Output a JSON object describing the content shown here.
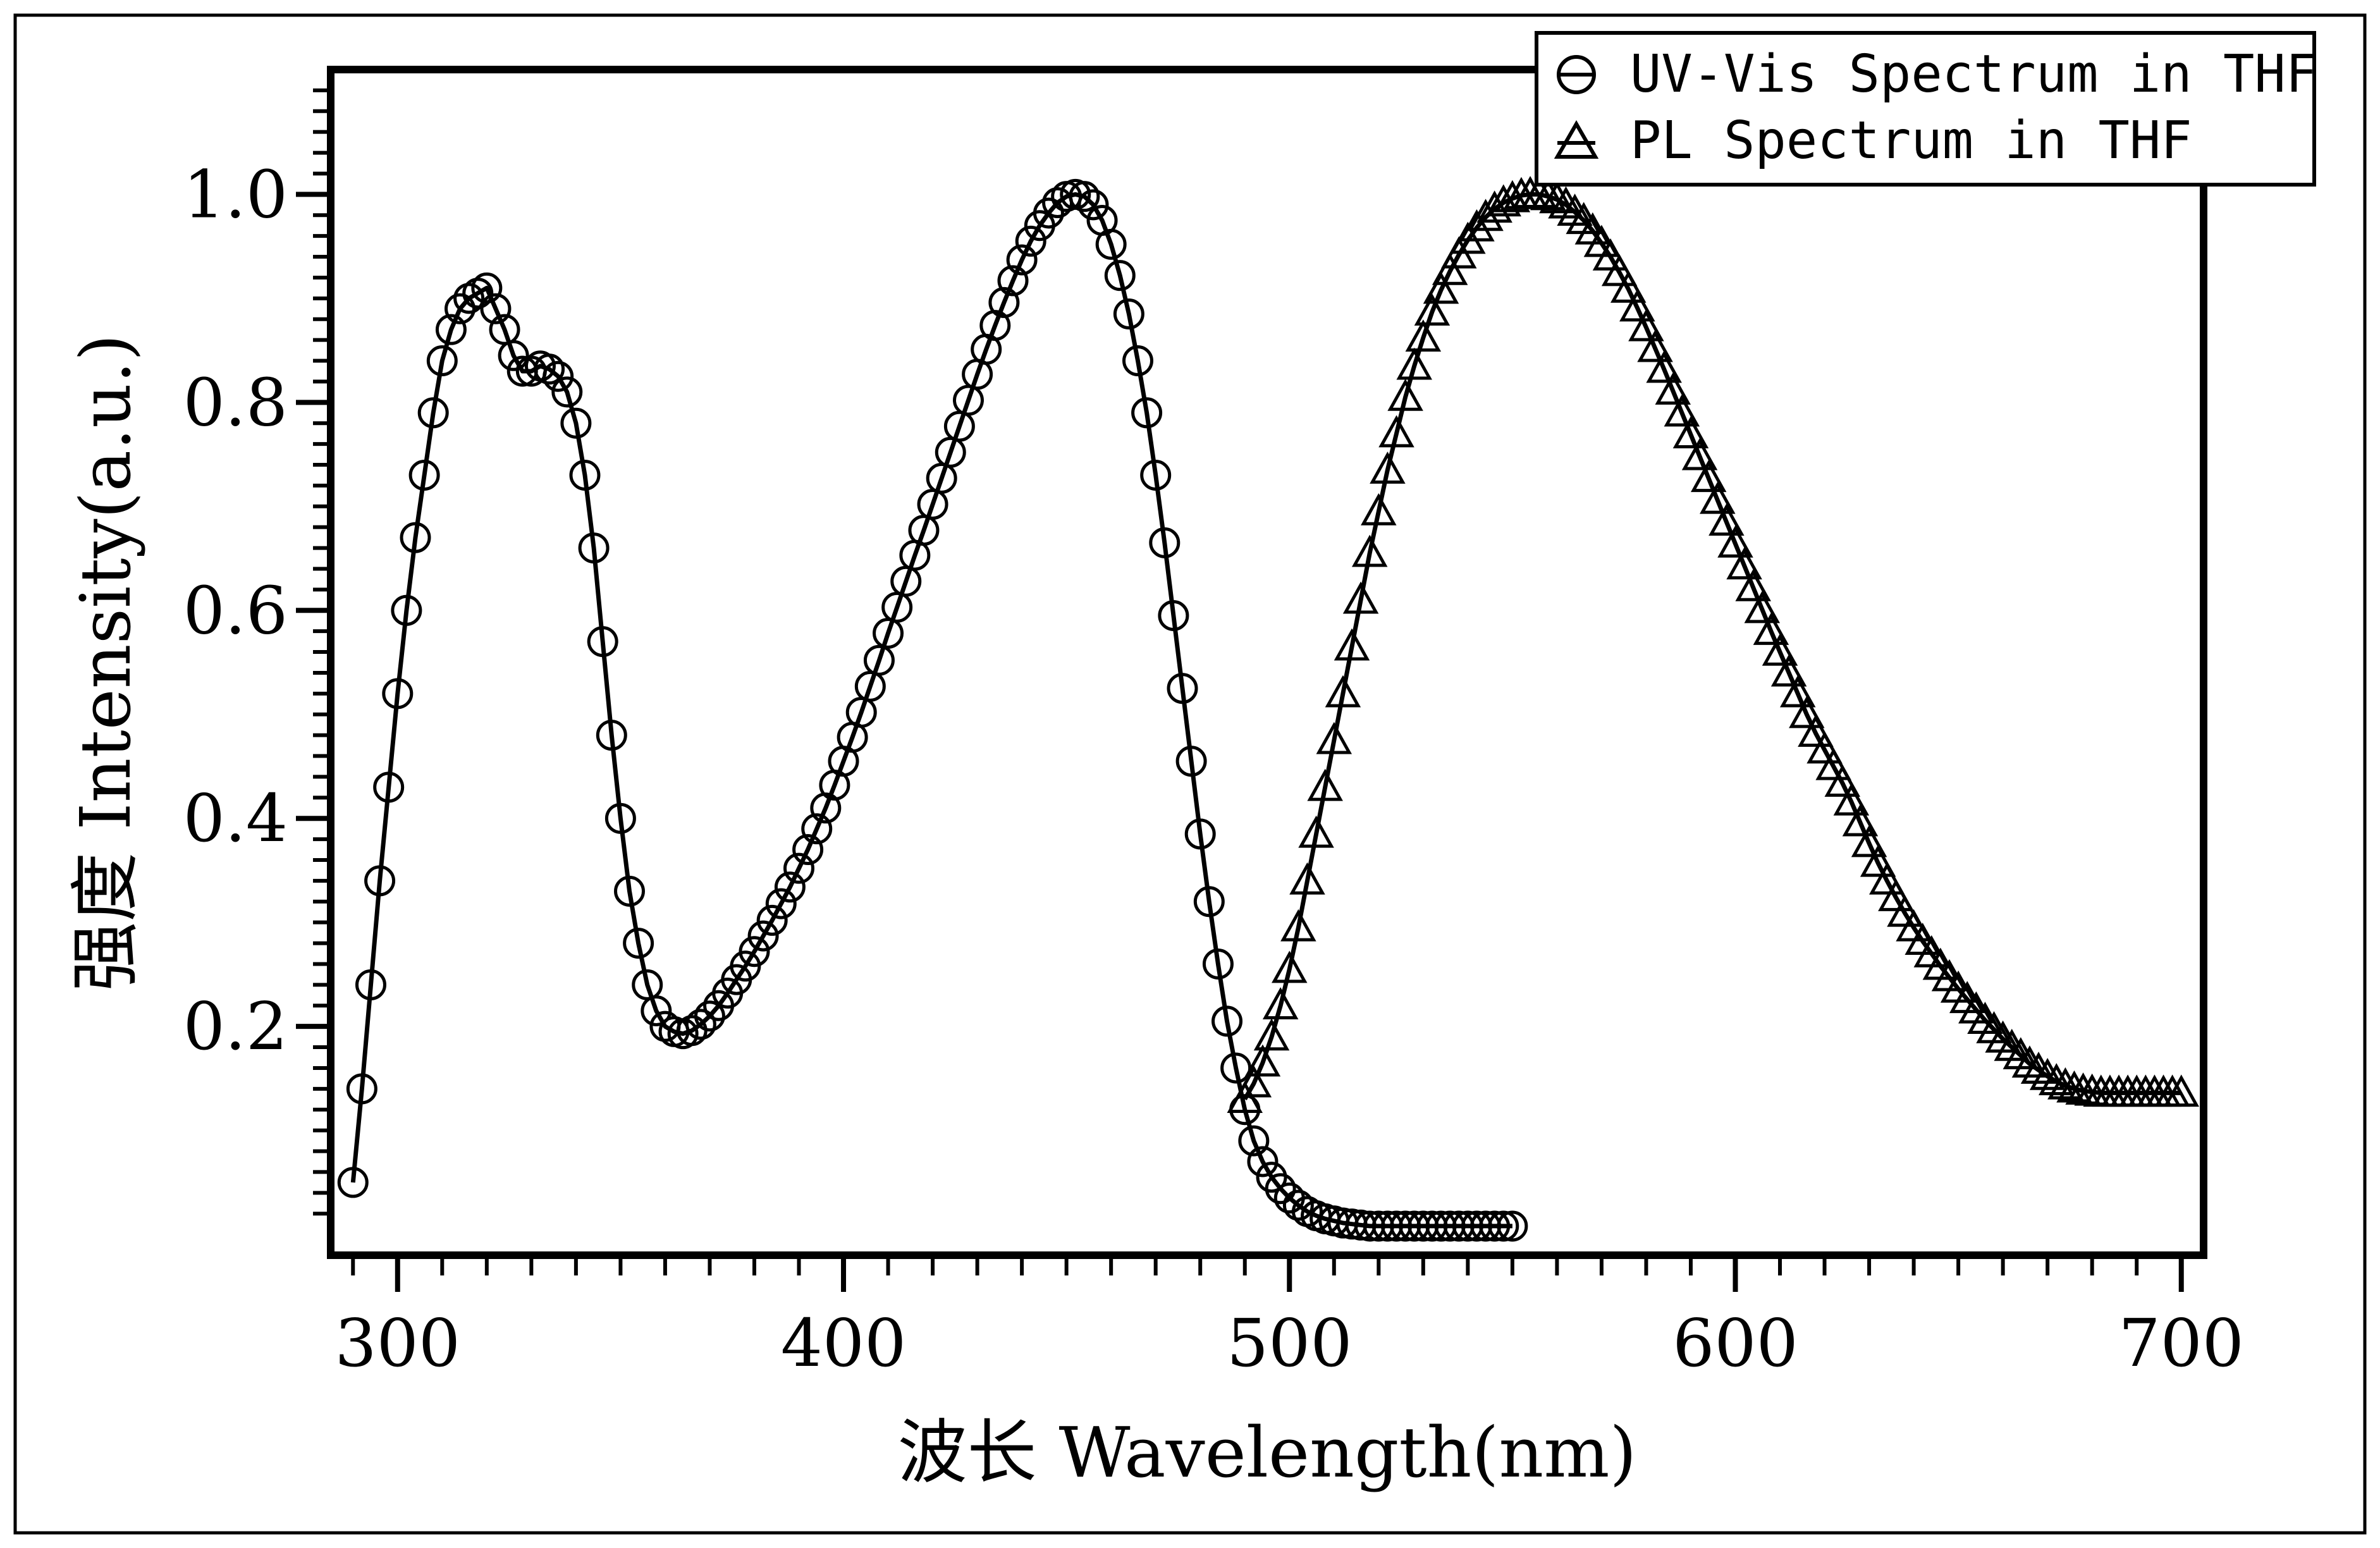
{
  "chart_data": {
    "type": "line",
    "xlabel": "波长 Wavelength(nm)",
    "ylabel": "强度 Intensity(a.u.)",
    "xlim": [
      285,
      705
    ],
    "ylim": [
      -0.02,
      1.12
    ],
    "xticks": [
      300,
      400,
      500,
      600,
      700
    ],
    "xtick_labels": [
      "300",
      "400",
      "500",
      "600",
      "700"
    ],
    "yticks": [
      0.2,
      0.4,
      0.6,
      0.8,
      1.0
    ],
    "ytick_labels": [
      "0.2",
      "0.4",
      "0.6",
      "0.8",
      "1.0"
    ],
    "grid": false,
    "legend": "top-right",
    "series": [
      {
        "name": "UV-Vis Spectrum in THF",
        "marker": "circle",
        "color": "#000000",
        "x": [
          290,
          292,
          294,
          296,
          298,
          300,
          302,
          304,
          306,
          308,
          310,
          312,
          314,
          316,
          318,
          320,
          322,
          324,
          326,
          328,
          330,
          332,
          334,
          336,
          338,
          340,
          342,
          344,
          346,
          348,
          350,
          352,
          354,
          356,
          358,
          360,
          362,
          364,
          366,
          368,
          370,
          372,
          374,
          376,
          378,
          380,
          382,
          384,
          386,
          388,
          390,
          392,
          394,
          396,
          398,
          400,
          402,
          404,
          406,
          408,
          410,
          412,
          414,
          416,
          418,
          420,
          422,
          424,
          426,
          428,
          430,
          432,
          434,
          436,
          438,
          440,
          442,
          444,
          446,
          448,
          450,
          452,
          454,
          456,
          458,
          460,
          462,
          464,
          466,
          468,
          470,
          472,
          474,
          476,
          478,
          480,
          482,
          484,
          486,
          488,
          490,
          492,
          494,
          496,
          498,
          500,
          502,
          504,
          506,
          508,
          510,
          512,
          514,
          516,
          518,
          520,
          522,
          524,
          526,
          528,
          530,
          532,
          534,
          536,
          538,
          540,
          542,
          544,
          546,
          548,
          550
        ],
        "y": [
          0.05,
          0.14,
          0.24,
          0.34,
          0.43,
          0.52,
          0.6,
          0.67,
          0.73,
          0.79,
          0.84,
          0.87,
          0.89,
          0.9,
          0.905,
          0.91,
          0.89,
          0.87,
          0.845,
          0.83,
          0.83,
          0.835,
          0.832,
          0.825,
          0.81,
          0.78,
          0.73,
          0.66,
          0.57,
          0.48,
          0.4,
          0.33,
          0.28,
          0.24,
          0.215,
          0.2,
          0.195,
          0.193,
          0.196,
          0.202,
          0.21,
          0.22,
          0.232,
          0.245,
          0.258,
          0.272,
          0.287,
          0.302,
          0.318,
          0.334,
          0.352,
          0.37,
          0.39,
          0.41,
          0.432,
          0.455,
          0.478,
          0.502,
          0.527,
          0.552,
          0.578,
          0.603,
          0.628,
          0.653,
          0.677,
          0.702,
          0.727,
          0.752,
          0.777,
          0.802,
          0.827,
          0.851,
          0.874,
          0.896,
          0.917,
          0.937,
          0.955,
          0.97,
          0.982,
          0.992,
          0.998,
          1.0,
          0.998,
          0.99,
          0.975,
          0.952,
          0.922,
          0.885,
          0.84,
          0.79,
          0.73,
          0.665,
          0.595,
          0.525,
          0.455,
          0.385,
          0.32,
          0.26,
          0.205,
          0.16,
          0.12,
          0.09,
          0.07,
          0.055,
          0.044,
          0.035,
          0.028,
          0.022,
          0.018,
          0.015,
          0.013,
          0.011,
          0.01,
          0.009,
          0.008,
          0.008,
          0.008,
          0.008,
          0.008,
          0.008,
          0.008,
          0.008,
          0.008,
          0.008,
          0.008,
          0.008,
          0.008,
          0.008,
          0.008,
          0.008,
          0.008
        ]
      },
      {
        "name": "PL Spectrum in THF",
        "marker": "triangle",
        "color": "#000000",
        "x": [
          490,
          492,
          494,
          496,
          498,
          500,
          502,
          504,
          506,
          508,
          510,
          512,
          514,
          516,
          518,
          520,
          522,
          524,
          526,
          528,
          530,
          532,
          534,
          536,
          538,
          540,
          542,
          544,
          546,
          548,
          550,
          552,
          554,
          556,
          558,
          560,
          562,
          564,
          566,
          568,
          570,
          572,
          574,
          576,
          578,
          580,
          582,
          584,
          586,
          588,
          590,
          592,
          594,
          596,
          598,
          600,
          602,
          604,
          606,
          608,
          610,
          612,
          614,
          616,
          618,
          620,
          622,
          624,
          626,
          628,
          630,
          632,
          634,
          636,
          638,
          640,
          642,
          644,
          646,
          648,
          650,
          652,
          654,
          656,
          658,
          660,
          662,
          664,
          666,
          668,
          670,
          672,
          674,
          676,
          678,
          680,
          682,
          684,
          686,
          688,
          690,
          692,
          694,
          696,
          698,
          700
        ],
        "y": [
          0.13,
          0.145,
          0.165,
          0.19,
          0.22,
          0.255,
          0.295,
          0.34,
          0.385,
          0.43,
          0.475,
          0.52,
          0.565,
          0.61,
          0.655,
          0.695,
          0.735,
          0.77,
          0.805,
          0.835,
          0.862,
          0.887,
          0.908,
          0.926,
          0.942,
          0.956,
          0.968,
          0.978,
          0.986,
          0.992,
          0.996,
          0.999,
          1.0,
          1.0,
          0.998,
          0.995,
          0.99,
          0.983,
          0.975,
          0.965,
          0.953,
          0.94,
          0.925,
          0.909,
          0.891,
          0.872,
          0.852,
          0.832,
          0.811,
          0.79,
          0.769,
          0.748,
          0.727,
          0.706,
          0.685,
          0.664,
          0.643,
          0.622,
          0.601,
          0.58,
          0.56,
          0.54,
          0.52,
          0.5,
          0.482,
          0.466,
          0.45,
          0.434,
          0.416,
          0.396,
          0.376,
          0.357,
          0.34,
          0.324,
          0.309,
          0.295,
          0.282,
          0.27,
          0.258,
          0.247,
          0.236,
          0.226,
          0.216,
          0.206,
          0.197,
          0.188,
          0.18,
          0.172,
          0.164,
          0.158,
          0.152,
          0.147,
          0.143,
          0.14,
          0.138,
          0.137,
          0.136,
          0.136,
          0.136,
          0.136,
          0.136,
          0.136,
          0.136,
          0.136,
          0.136,
          0.136
        ]
      }
    ]
  }
}
